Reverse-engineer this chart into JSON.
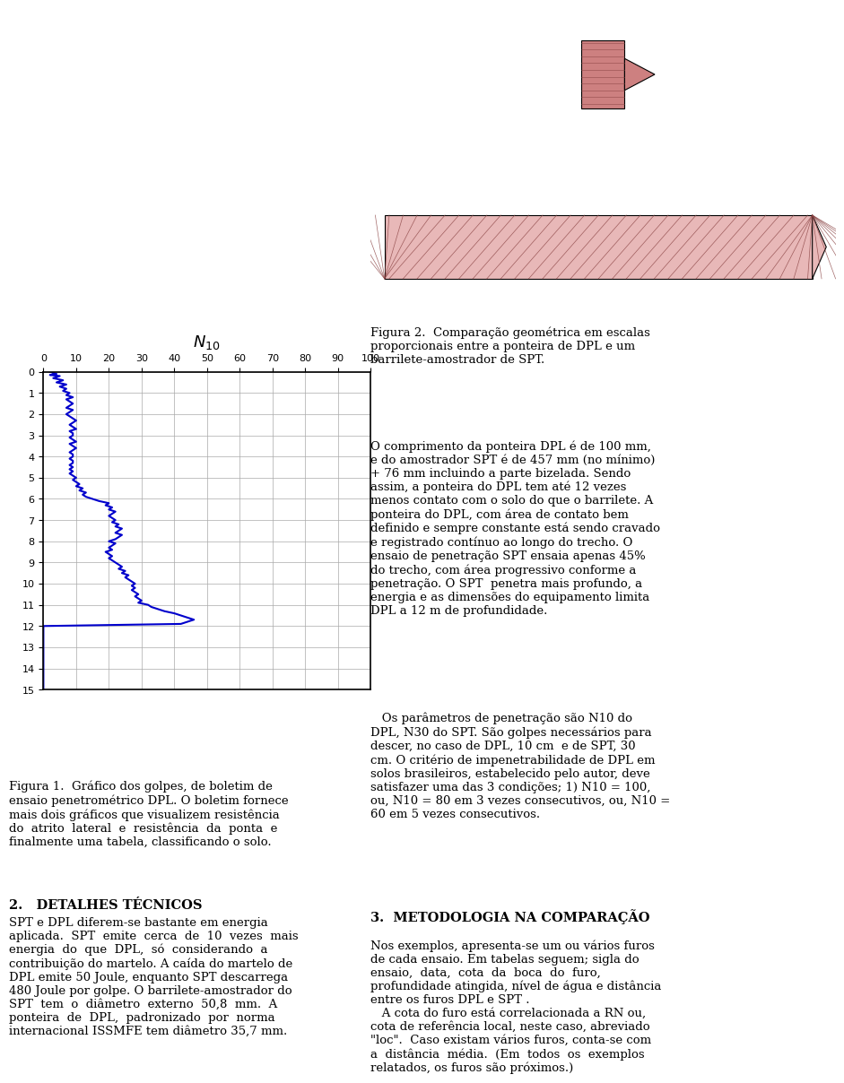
{
  "title": "N_{10}",
  "x_label": "N10",
  "x_ticks": [
    0,
    10,
    20,
    30,
    40,
    50,
    60,
    70,
    80,
    90,
    100
  ],
  "y_ticks": [
    0,
    1,
    2,
    3,
    4,
    5,
    6,
    7,
    8,
    9,
    10,
    11,
    12,
    13,
    14,
    15
  ],
  "xlim": [
    0,
    100
  ],
  "ylim": [
    0,
    15
  ],
  "line_color": "#0000CC",
  "background_color": "#ffffff",
  "grid_color": "#aaaaaa",
  "fig1_caption": "Figura 1.  Gráfico dos golpes, de boletim de\nensaio penetrométrico DPL. O boletim fornece\nmais dois gráficos que visualizem resistência\ndo  atrito  lateral  e  resistência  da  ponta  e\nfinalmente uma tabela, classificando o solo.",
  "section2_title": "2.   DETALHES TÉCNICOS",
  "section2_text": "SPT e DPL diferem-se bastante em energia\naplicada.  SPT  emite  cerca  de  10  vezes  mais\nenergia  do  que  DPL,  só  considerando  a\ncontribuição do martelo. A caída do martelo de\nDPL emite 50 Joule, enquanto SPT descarrega\n480 Joule por golpe. O barrilete-amostrador do\nSPT  tem  o  diâmetro  externo  50,8  mm.  A\nponteira  de  DPL,  padronizado  por  norma\ninternacional ISSMFE tem diâmetro 35,7 mm.",
  "fig2_caption": "Figura 2.  Comparação geométrica em escalas\nproporcionais entre a ponteira de DPL e um\nbarrilete-amostrador de SPT.",
  "right_text1": "O comprimento da ponteira DPL é de 100 mm,\ne do amostrador SPT é de 457 mm (no mínimo)\n+ 76 mm incluindo a parte bizelada. Sendo\nassim, a ponteira do DPL tem até 12 vezes\nmenos contato com o solo do que o barrilete. A\nponteira do DPL, com área de contato bem\ndefinido e sempre constante está sendo cravado\ne registrado contínuo ao longo do trecho. O\nensaio de penetração SPT ensaia apenas 45%\ndo trecho, com área progressivo conforme a\npenetração. O SPT  penetra mais profundo, a\nenergia e as dimensões do equipamento limita\nDPL a 12 m de profundidade.",
  "right_text2": "   Os parâmetros de penetração são N10 do\nDPL, N30 do SPT. São golpes necessários para\ndescer, no caso de DPL, 10 cm  e de SPT, 30\ncm. O critério de impenetrabilidade de DPL em\nsolos brasileiros, estabelecido pelo autor, deve\nsatisfazer uma das 3 condições; 1) N10 = 100,\nou, N10 = 80 em 3 vezes consecutivos, ou, N10 =\n60 em 5 vezes consecutivos.",
  "section3_title": "3.  METODOLOGIA NA COMPARAÇÃO",
  "section3_text": "Nos exemplos, apresenta-se um ou vários furos\nde cada ensaio. Em tabelas seguem; sigla do\nensaio,  data,  cota  da  boca  do  furo,\nprofundidade atingida, nível de água e distância\nentre os furos DPL e SPT .\n   A cota do furo está correlacionada a RN ou,\ncota de referência local, neste caso, abreviado\n\"loc\".  Caso existam vários furos, conta-se com\na  distância  média.  (Em  todos  os  exemplos\nrelatados, os furos são próximos.)"
}
